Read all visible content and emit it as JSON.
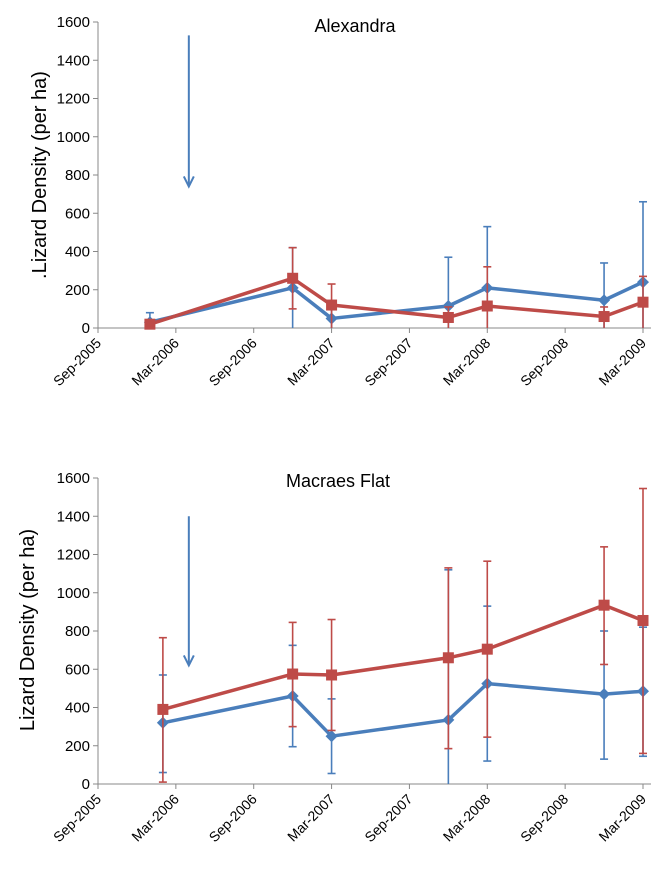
{
  "chart_data": [
    {
      "type": "line",
      "title": "Alexandra",
      "ylabel": ".Lizard Density (per ha)",
      "xlabel": "",
      "ylim": [
        0,
        1600
      ],
      "yticks": [
        0,
        200,
        400,
        600,
        800,
        1000,
        1200,
        1400,
        1600
      ],
      "xticks": [
        "Sep-2005",
        "Mar-2006",
        "Sep-2006",
        "Mar-2007",
        "Sep-2007",
        "Mar-2008",
        "Sep-2008",
        "Mar-2009"
      ],
      "annotation": {
        "type": "arrow-down",
        "x": "2006-04",
        "y_from": 1530,
        "y_to": 740
      },
      "series": [
        {
          "color": "#4a7ebb",
          "marker": "diamond",
          "points": [
            {
              "x": "2006-01",
              "y": 30,
              "err_low": 0,
              "err_high": 80
            },
            {
              "x": "2006-12",
              "y": 210,
              "err_low": 0,
              "err_high": 420
            },
            {
              "x": "2007-03",
              "y": 50,
              "err_low": 0,
              "err_high": 100
            },
            {
              "x": "2007-12",
              "y": 115,
              "err_low": 0,
              "err_high": 370
            },
            {
              "x": "2008-03",
              "y": 210,
              "err_low": 0,
              "err_high": 530
            },
            {
              "x": "2008-12",
              "y": 145,
              "err_low": 0,
              "err_high": 340
            },
            {
              "x": "2009-03",
              "y": 240,
              "err_low": 0,
              "err_high": 660
            }
          ]
        },
        {
          "color": "#be4b48",
          "marker": "square",
          "points": [
            {
              "x": "2006-01",
              "y": 20,
              "err_low": 0,
              "err_high": 40
            },
            {
              "x": "2006-12",
              "y": 260,
              "err_low": 100,
              "err_high": 420
            },
            {
              "x": "2007-03",
              "y": 120,
              "err_low": 0,
              "err_high": 230
            },
            {
              "x": "2007-12",
              "y": 55,
              "err_low": 0,
              "err_high": 110
            },
            {
              "x": "2008-03",
              "y": 115,
              "err_low": 0,
              "err_high": 320
            },
            {
              "x": "2008-12",
              "y": 60,
              "err_low": 0,
              "err_high": 110
            },
            {
              "x": "2009-03",
              "y": 135,
              "err_low": 0,
              "err_high": 270
            }
          ]
        }
      ]
    },
    {
      "type": "line",
      "title": "Macraes Flat",
      "ylabel": "Lizard Density (per ha)",
      "xlabel": "",
      "ylim": [
        0,
        1600
      ],
      "yticks": [
        0,
        200,
        400,
        600,
        800,
        1000,
        1200,
        1400,
        1600
      ],
      "xticks": [
        "Sep-2005",
        "Mar-2006",
        "Sep-2006",
        "Mar-2007",
        "Sep-2007",
        "Mar-2008",
        "Sep-2008",
        "Mar-2009"
      ],
      "annotation": {
        "type": "arrow-down",
        "x": "2006-04",
        "y_from": 1400,
        "y_to": 620
      },
      "series": [
        {
          "color": "#4a7ebb",
          "marker": "diamond",
          "points": [
            {
              "x": "2006-02",
              "y": 320,
              "err_low": 60,
              "err_high": 570
            },
            {
              "x": "2006-12",
              "y": 460,
              "err_low": 195,
              "err_high": 725
            },
            {
              "x": "2007-03",
              "y": 250,
              "err_low": 55,
              "err_high": 445
            },
            {
              "x": "2007-12",
              "y": 335,
              "err_low": 0,
              "err_high": 1120
            },
            {
              "x": "2008-03",
              "y": 525,
              "err_low": 120,
              "err_high": 930
            },
            {
              "x": "2008-12",
              "y": 470,
              "err_low": 130,
              "err_high": 800
            },
            {
              "x": "2009-03",
              "y": 485,
              "err_low": 145,
              "err_high": 820
            }
          ]
        },
        {
          "color": "#be4b48",
          "marker": "square",
          "points": [
            {
              "x": "2006-02",
              "y": 390,
              "err_low": 10,
              "err_high": 765
            },
            {
              "x": "2006-12",
              "y": 575,
              "err_low": 300,
              "err_high": 845
            },
            {
              "x": "2007-03",
              "y": 570,
              "err_low": 280,
              "err_high": 860
            },
            {
              "x": "2007-12",
              "y": 660,
              "err_low": 185,
              "err_high": 1130
            },
            {
              "x": "2008-03",
              "y": 705,
              "err_low": 245,
              "err_high": 1165
            },
            {
              "x": "2008-12",
              "y": 935,
              "err_low": 625,
              "err_high": 1240
            },
            {
              "x": "2009-03",
              "y": 855,
              "err_low": 160,
              "err_high": 1545
            }
          ]
        }
      ]
    }
  ]
}
